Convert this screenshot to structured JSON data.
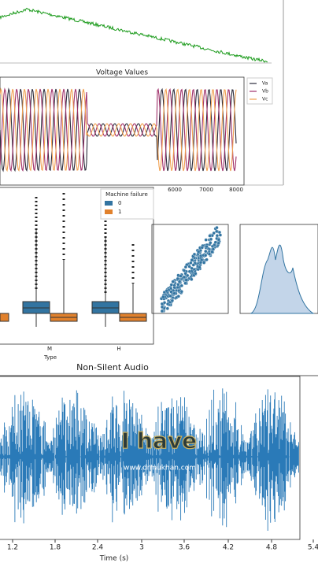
{
  "voltage_plot": {
    "title": "Voltage Values",
    "legend": [
      "Va",
      "Vb",
      "Vc"
    ],
    "xticks": [
      "6000",
      "7000",
      "8000"
    ]
  },
  "boxplot": {
    "legend_title": "Machine failure",
    "legend": [
      "0",
      "1"
    ],
    "xticks": [
      "M",
      "H"
    ],
    "xlabel": "Type"
  },
  "audio_plot": {
    "title": "Non-Silent Audio",
    "xticks": [
      "1.2",
      "1.8",
      "2.4",
      "3",
      "3.6",
      "4.2",
      "4.8",
      "5.4"
    ],
    "xlabel": "Time (s)"
  },
  "overlay": {
    "caption": "I have",
    "watermark": "www.drmukhan.com"
  }
}
